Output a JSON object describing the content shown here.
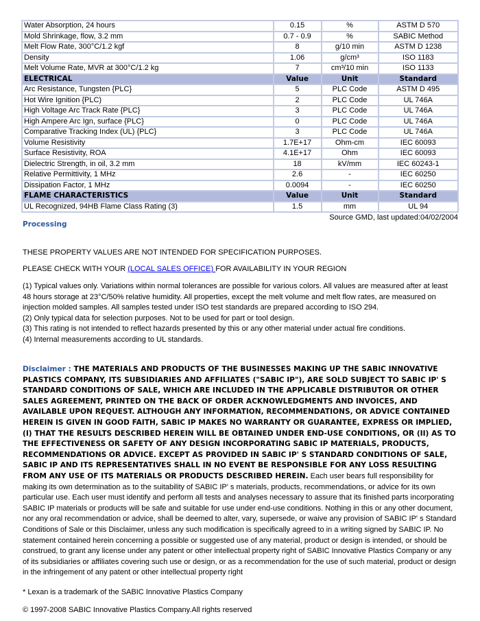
{
  "table": {
    "rows": [
      {
        "type": "row",
        "property": "Water Absorption, 24 hours",
        "value": "0.15",
        "unit": "%",
        "standard": "ASTM D 570"
      },
      {
        "type": "row",
        "property": "Mold Shrinkage, flow, 3.2 mm",
        "value": "0.7 - 0.9",
        "unit": "%",
        "standard": "SABIC Method"
      },
      {
        "type": "row",
        "property": "Melt Flow Rate, 300°C/1.2 kgf",
        "value": "8",
        "unit": "g/10 min",
        "standard": "ASTM D 1238"
      },
      {
        "type": "row",
        "property": "Density",
        "value": "1.06",
        "unit": "g/cm³",
        "standard": "ISO 1183"
      },
      {
        "type": "row",
        "property": "Melt Volume Rate, MVR at 300°C/1.2 kg",
        "value": "7",
        "unit": "cm³/10 min",
        "standard": "ISO 1133"
      },
      {
        "type": "header",
        "property": "ELECTRICAL",
        "value": "Value",
        "unit": "Unit",
        "standard": "Standard"
      },
      {
        "type": "row",
        "property": "Arc Resistance, Tungsten {PLC}",
        "value": "5",
        "unit": "PLC Code",
        "standard": "ASTM D 495"
      },
      {
        "type": "row",
        "property": "Hot Wire Ignition {PLC)",
        "value": "2",
        "unit": "PLC Code",
        "standard": "UL 746A"
      },
      {
        "type": "row",
        "property": "High Voltage Arc Track Rate {PLC}",
        "value": "3",
        "unit": "PLC Code",
        "standard": "UL 746A"
      },
      {
        "type": "row",
        "property": "High Ampere Arc Ign, surface {PLC}",
        "value": "0",
        "unit": "PLC Code",
        "standard": "UL 746A"
      },
      {
        "type": "row",
        "property": "Comparative Tracking Index (UL) {PLC}",
        "value": "3",
        "unit": "PLC Code",
        "standard": "UL 746A"
      },
      {
        "type": "row",
        "property": "Volume Resistivity",
        "value": "1.7E+17",
        "unit": "Ohm-cm",
        "standard": "IEC 60093"
      },
      {
        "type": "row",
        "property": "Surface Resistivity, ROA",
        "value": "4.1E+17",
        "unit": "Ohm",
        "standard": "IEC 60093"
      },
      {
        "type": "row",
        "property": "Dielectric Strength, in oil, 3.2 mm",
        "value": "18",
        "unit": "kV/mm",
        "standard": "IEC 60243-1"
      },
      {
        "type": "row",
        "property": "Relative Permittivity, 1 MHz",
        "value": "2.6",
        "unit": "-",
        "standard": "IEC 60250"
      },
      {
        "type": "row",
        "property": "Dissipation Factor, 1 MHz",
        "value": "0.0094",
        "unit": "-",
        "standard": "IEC 60250"
      },
      {
        "type": "header",
        "property": "FLAME CHARACTERISTICS",
        "value": "Value",
        "unit": "Unit",
        "standard": "Standard"
      },
      {
        "type": "row",
        "property": "UL Recognized, 94HB Flame Class Rating (3)",
        "value": "1.5",
        "unit": "mm",
        "standard": "UL 94"
      }
    ]
  },
  "source": "Source GMD, last updated:04/02/2004",
  "processing_link": "Processing",
  "notice": "THESE PROPERTY VALUES ARE NOT INTENDED FOR SPECIFICATION PURPOSES.",
  "check": {
    "before": "PLEASE CHECK WITH YOUR ",
    "link": "(LOCAL SALES OFFICE) ",
    "after": "FOR AVAILABILITY IN YOUR REGION"
  },
  "notes": [
    "(1) Typical values only. Variations within normal tolerances are possible for various colors. All values are measured after at least 48 hours storage at 23°C/50% relative humidity. All properties, except the melt volume and melt flow rates, are measured on injection molded samples. All samples tested under ISO test standards are prepared according to ISO 294.",
    "(2) Only typical data for selection purposes. Not to be used for part or tool design.",
    "(3) This rating is not intended to reflect hazards presented by this or any other material under actual fire conditions.",
    "(4) Internal measurements according to UL standards."
  ],
  "disclaimer": {
    "label": "Disclaimer : ",
    "caps": "THE MATERIALS AND PRODUCTS OF THE BUSINESSES MAKING UP THE SABIC INNOVATIVE PLASTICS COMPANY, ITS SUBSIDIARIES AND AFFILIATES (\"SABIC IP\"), ARE SOLD SUBJECT TO SABIC IP' S STANDARD CONDITIONS OF SALE, WHICH ARE INCLUDED IN THE APPLICABLE DISTRIBUTOR OR OTHER SALES AGREEMENT, PRINTED ON THE BACK OF ORDER ACKNOWLEDGMENTS AND INVOICES, AND AVAILABLE UPON REQUEST. ALTHOUGH ANY INFORMATION, RECOMMENDATIONS, OR ADVICE CONTAINED HEREIN IS GIVEN IN GOOD FAITH, SABIC IP MAKES NO WARRANTY OR GUARANTEE, EXPRESS OR IMPLIED, (I) THAT THE RESULTS DESCRIBED HEREIN WILL BE OBTAINED UNDER END-USE CONDITIONS, OR (II) AS TO THE EFFECTIVENESS OR SAFETY OF ANY DESIGN INCORPORATING SABIC IP MATERIALS, PRODUCTS, RECOMMENDATIONS OR ADVICE. EXCEPT AS PROVIDED IN SABIC IP' S STANDARD CONDITIONS OF SALE, SABIC IP AND ITS REPRESENTATIVES SHALL IN NO EVENT BE RESPONSIBLE FOR ANY LOSS RESULTING FROM ANY USE OF ITS MATERIALS OR PRODUCTS DESCRIBED HEREIN.",
    "body": " Each user bears full responsibility for making its own determination as to the suitability of SABIC IP' s materials, products, recommendations, or advice for its own particular use. Each user must identify and perform all tests and analyses necessary to assure that its finished parts incorporating SABIC IP materials or products will be safe and suitable for use under end-use conditions. Nothing in this or any other document, nor any oral recommendation or advice, shall be deemed to alter, vary, supersede, or waive any provision of SABIC IP' s Standard Conditions of Sale or this Disclaimer, unless any such modification is specifically agreed to in a writing signed by SABIC IP. No statement contained herein concerning a possible or suggested use of any material, product or design is intended, or should be construed, to grant any license under any patent or other intellectual property right of SABIC Innovative Plastics Company or any of its subsidiaries or affiliates covering such use or design, or as a recommendation for the use of such material, product or design in the infringement of any patent or other intellectual property right"
  },
  "trademark": "* Lexan is a trademark of the SABIC Innovative Plastics Company",
  "copyright": "© 1997-2008 SABIC Innovative Plastics Company.All rights reserved",
  "colors": {
    "header_bg": "#b2bbdc",
    "border": "#c3cbe3",
    "accent": "#2b5aa0",
    "link": "#0000ee"
  }
}
